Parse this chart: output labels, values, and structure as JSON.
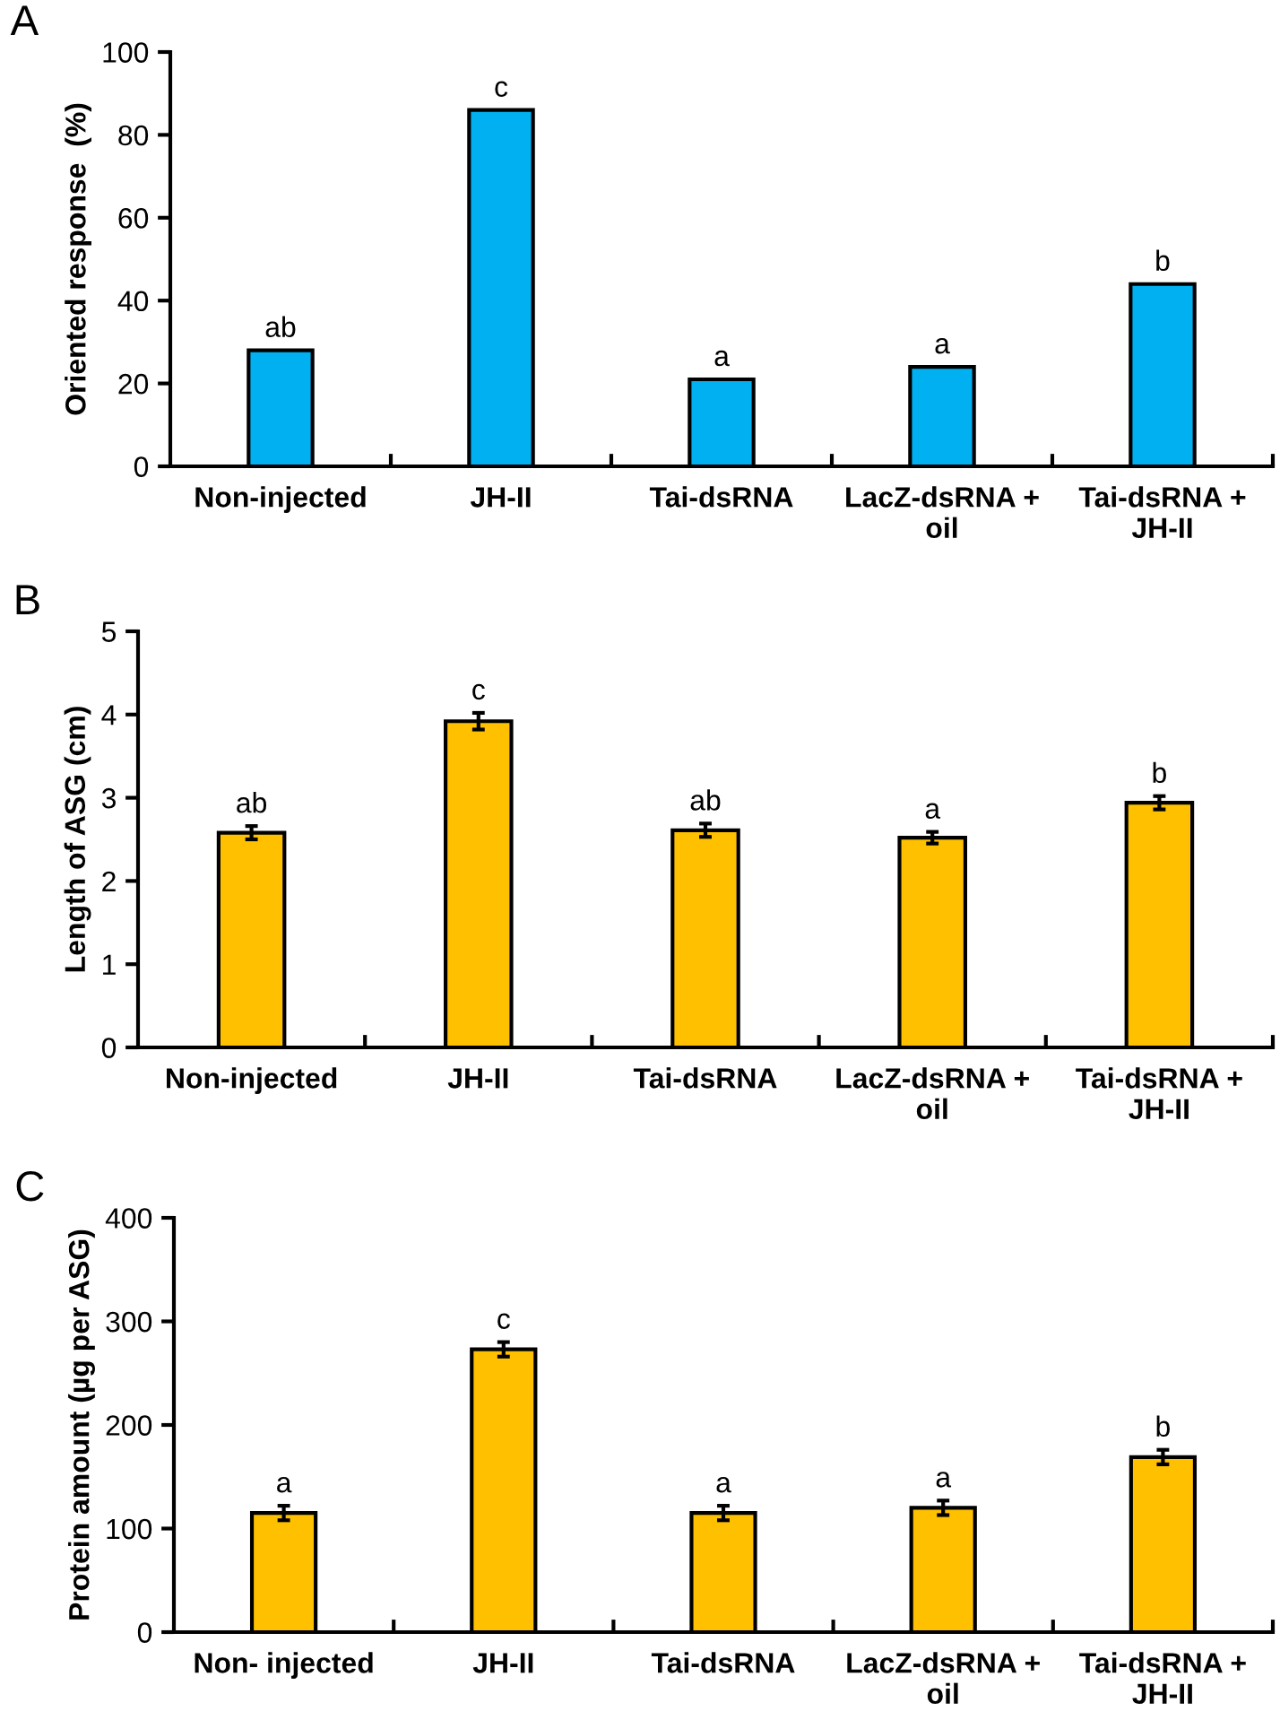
{
  "chart_data": [
    {
      "type": "bar",
      "title": "A",
      "ylabel": "Oriented response  (%)",
      "categories": [
        "Non-injected",
        "JH-II",
        "Tai-dsRNA",
        "LacZ-dsRNA +\noil",
        "Tai-dsRNA +\nJH-II"
      ],
      "values": [
        28,
        86,
        21,
        24,
        44
      ],
      "color": "#00b0f0",
      "ylim": [
        0,
        100
      ],
      "yticks": [
        0,
        20,
        40,
        60,
        80,
        100
      ],
      "grid": false,
      "legend": false,
      "annotations": [
        {
          "text": "ab",
          "x": "Non-injected",
          "y": 28
        },
        {
          "text": "c",
          "x": "JH-II",
          "y": 86
        },
        {
          "text": "a",
          "x": "Tai-dsRNA",
          "y": 21
        },
        {
          "text": "a",
          "x": "LacZ-dsRNA +\noil",
          "y": 24
        },
        {
          "text": "b",
          "x": "Tai-dsRNA +\nJH-II",
          "y": 44
        }
      ]
    },
    {
      "type": "bar",
      "title": "B",
      "ylabel": "Length of ASG (cm)",
      "categories": [
        "Non-injected",
        "JH-II",
        "Tai-dsRNA",
        "LacZ-dsRNA +\noil",
        "Tai-dsRNA +\nJH-II"
      ],
      "values": [
        2.58,
        3.92,
        2.61,
        2.52,
        2.94
      ],
      "errors": [
        0.08,
        0.1,
        0.08,
        0.07,
        0.08
      ],
      "color": "#ffc000",
      "ylim": [
        0,
        5
      ],
      "yticks": [
        0,
        1,
        2,
        3,
        4,
        5
      ],
      "grid": false,
      "legend": false,
      "annotations": [
        {
          "text": "ab",
          "x": "Non-injected",
          "y": 2.66
        },
        {
          "text": "c",
          "x": "JH-II",
          "y": 4.02
        },
        {
          "text": "ab",
          "x": "Tai-dsRNA",
          "y": 2.69
        },
        {
          "text": "a",
          "x": "LacZ-dsRNA +\noil",
          "y": 2.59
        },
        {
          "text": "b",
          "x": "Tai-dsRNA +\nJH-II",
          "y": 3.02
        }
      ]
    },
    {
      "type": "bar",
      "title": "C",
      "ylabel": "Protein amount (µg per ASG)",
      "categories": [
        "Non- injected",
        "JH-II",
        "Tai-dsRNA",
        "LacZ-dsRNA +\noil",
        "Tai-dsRNA +\nJH-II"
      ],
      "values": [
        115,
        273,
        115,
        120,
        169
      ],
      "errors": [
        7,
        7,
        7,
        7,
        7
      ],
      "color": "#ffc000",
      "ylim": [
        0,
        400
      ],
      "yticks": [
        0,
        100,
        200,
        300,
        400
      ],
      "grid": false,
      "legend": false,
      "annotations": [
        {
          "text": "a",
          "x": "Non- injected",
          "y": 122
        },
        {
          "text": "c",
          "x": "JH-II",
          "y": 280
        },
        {
          "text": "a",
          "x": "Tai-dsRNA",
          "y": 122
        },
        {
          "text": "a",
          "x": "LacZ-dsRNA +\noil",
          "y": 127
        },
        {
          "text": "b",
          "x": "Tai-dsRNA +\nJH-II",
          "y": 176
        }
      ]
    }
  ]
}
